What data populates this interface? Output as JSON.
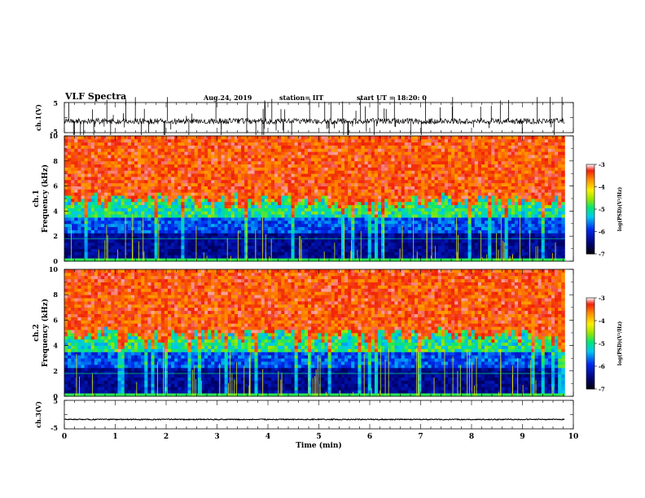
{
  "header": {
    "title": "VLF Spectra",
    "date": "Aug.24, 2019",
    "station": "station= IIT",
    "start": "start UT = 18:20: 0"
  },
  "chart_data": [
    {
      "type": "line",
      "panel": "ch1-waveform",
      "ylabel": "ch.1(V)",
      "ylim": [
        -5,
        5
      ],
      "yticks": [
        "5",
        "-5"
      ],
      "xlim": [
        0,
        10
      ],
      "baseline_v": -1.2,
      "line_color": "#000000"
    },
    {
      "type": "heatmap",
      "panel": "ch1-spectrogram",
      "ylabel": "ch.1 Frequency (kHz)",
      "ylim": [
        0,
        10
      ],
      "yticks": [
        "0",
        "2",
        "4",
        "6",
        "8",
        "10"
      ],
      "xlim": [
        0,
        9.83
      ],
      "colorbar": {
        "label": "log(PSD)(V²/Hz)",
        "range": [
          -7,
          -3
        ],
        "ticks": [
          "-3",
          "-4",
          "-5",
          "-6",
          "-7"
        ]
      }
    },
    {
      "type": "heatmap",
      "panel": "ch2-spectrogram",
      "ylabel": "ch.2 Frequency (kHz)",
      "ylim": [
        0,
        10
      ],
      "yticks": [
        "0",
        "2",
        "4",
        "6",
        "8",
        "10"
      ],
      "xlim": [
        0,
        9.83
      ],
      "colorbar": {
        "label": "log(PSD)(V²/Hz)",
        "range": [
          -7,
          -3
        ],
        "ticks": [
          "-3",
          "-4",
          "-5",
          "-6",
          "-7"
        ]
      }
    },
    {
      "type": "line",
      "panel": "ch3-waveform",
      "ylabel": "ch.3(V)",
      "ylim": [
        -5,
        5
      ],
      "yticks": [
        "5",
        "-5"
      ],
      "xlim": [
        0,
        10
      ],
      "baseline_v": -1.7,
      "line_color": "#000000"
    }
  ],
  "x_axis": {
    "label": "Time (min)",
    "range": [
      0,
      10
    ],
    "ticks": [
      "0",
      "1",
      "2",
      "3",
      "4",
      "5",
      "6",
      "7",
      "8",
      "9",
      "10"
    ]
  }
}
